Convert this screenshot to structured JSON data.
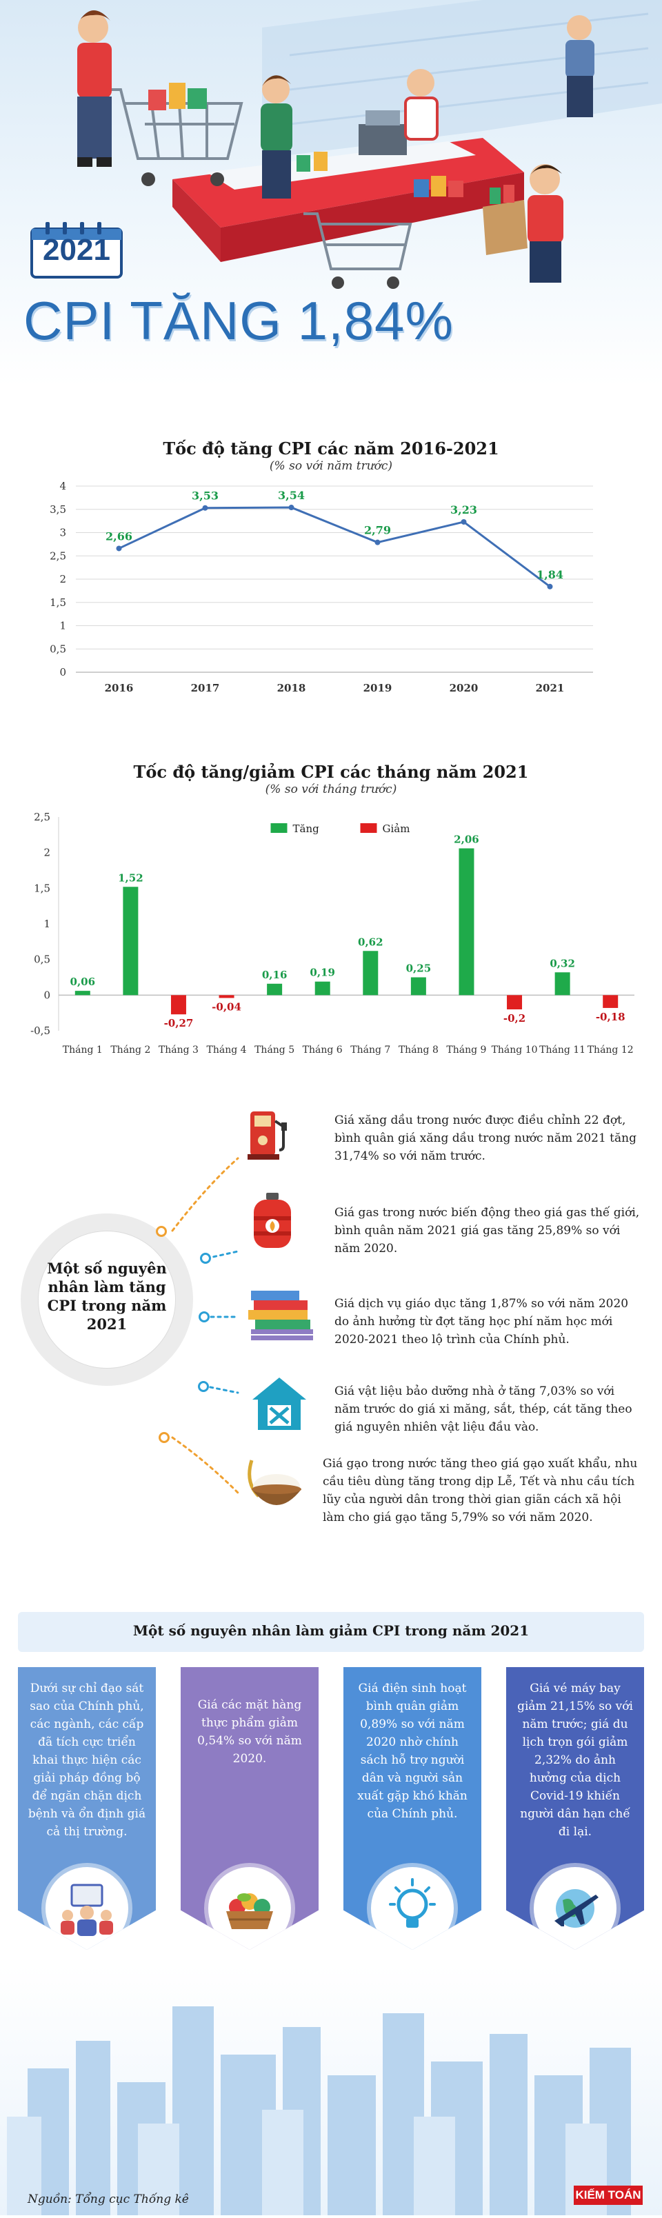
{
  "hero": {
    "year": "2021",
    "headline": "CPI TĂNG 1,84%"
  },
  "chart1": {
    "title": "Tốc độ tăng CPI các năm 2016-2021",
    "subtitle": "(% so với năm trước)"
  },
  "chart2": {
    "title": "Tốc độ tăng/giảm CPI các tháng năm 2021",
    "subtitle": "(% so với tháng trước)",
    "legend_up": "Tăng",
    "legend_down": "Giảm"
  },
  "colors": {
    "line": "#3f6fb5",
    "label_green": "#1a9b4a",
    "bar_green": "#1faa4a",
    "bar_red": "#e02020",
    "col1": "#6b9bd8",
    "col2": "#8e7cc3",
    "col3": "#4f8fd8",
    "col4": "#4a63b8"
  },
  "chart_data": [
    {
      "type": "line",
      "x": [
        "2016",
        "2017",
        "2018",
        "2019",
        "2020",
        "2021"
      ],
      "values": [
        2.66,
        3.53,
        3.54,
        2.79,
        3.23,
        1.84
      ],
      "labels": [
        "2,66",
        "3,53",
        "3,54",
        "2,79",
        "3,23",
        "1,84"
      ],
      "ylim": [
        0,
        4
      ],
      "yticks": [
        "0",
        "0,5",
        "1",
        "1,5",
        "2",
        "2,5",
        "3",
        "3,5",
        "4"
      ],
      "grid": true
    },
    {
      "type": "bar",
      "categories": [
        "Tháng 1",
        "Tháng 2",
        "Tháng 3",
        "Tháng 4",
        "Tháng 5",
        "Tháng 6",
        "Tháng 7",
        "Tháng 8",
        "Tháng 9",
        "Tháng 10",
        "Tháng 11",
        "Tháng 12"
      ],
      "values": [
        0.06,
        1.52,
        -0.27,
        -0.04,
        0.16,
        0.19,
        0.62,
        0.25,
        2.06,
        -0.2,
        0.32,
        -0.18
      ],
      "labels": [
        "0,06",
        "1,52",
        "-0,27",
        "-0,04",
        "0,16",
        "0,19",
        "0,62",
        "0,25",
        "2,06",
        "-0,2",
        "0,32",
        "-0,18"
      ],
      "ylim": [
        -0.5,
        2.5
      ],
      "yticks": [
        "-0,5",
        "0",
        "0,5",
        "1",
        "1,5",
        "2",
        "2,5"
      ],
      "legend": "top-center",
      "grid": false
    }
  ],
  "increase": {
    "circle_text": "Một số nguyên nhân làm tăng CPI trong năm 2021",
    "items": [
      {
        "icon": "fuel-pump-icon",
        "text": "Giá xăng dầu trong nước được điều chỉnh 22 đợt, bình quân giá xăng dầu trong nước năm 2021 tăng 31,74% so với năm trước."
      },
      {
        "icon": "gas-cylinder-icon",
        "text": "Giá gas trong nước biến động theo giá gas thế giới, bình quân năm 2021 giá gas tăng 25,89% so với năm 2020."
      },
      {
        "icon": "books-icon",
        "text": "Giá dịch vụ giáo dục tăng 1,87% so với năm 2020 do ảnh hưởng từ đợt tăng học phí năm học mới 2020-2021 theo lộ trình của Chính phủ."
      },
      {
        "icon": "house-tools-icon",
        "text": "Giá vật liệu bảo dưỡng nhà ở tăng 7,03% so với năm trước do giá xi măng, sắt, thép, cát tăng theo giá nguyên  nhiên vật liệu đầu vào."
      },
      {
        "icon": "rice-bowl-icon",
        "text": "Giá gạo trong nước tăng theo giá gạo xuất khẩu, nhu cầu tiêu dùng tăng trong dịp Lễ, Tết và nhu cầu tích lũy của người dân trong thời gian giãn cách xã hội làm cho giá gạo tăng 5,79% so với năm 2020."
      }
    ]
  },
  "decrease": {
    "title": "Một số nguyên nhân làm giảm CPI trong năm 2021",
    "items": [
      {
        "icon": "government-meeting-icon",
        "text": "Dưới sự chỉ đạo sát sao của Chính phủ, các ngành, các cấp đã tích cực triển khai thực hiện các giải pháp đồng bộ để ngăn chặn dịch bệnh và ổn định giá cả thị trường."
      },
      {
        "icon": "food-basket-icon",
        "text": "Giá các mặt hàng thực phẩm giảm 0,54% so với năm 2020."
      },
      {
        "icon": "light-bulb-icon",
        "text": "Giá điện sinh hoạt bình quân giảm 0,89% so với năm 2020 nhờ chính sách hỗ trợ người dân và người sản xuất gặp khó khăn của Chính phủ."
      },
      {
        "icon": "airplane-globe-icon",
        "text": "Giá vé máy bay giảm 21,15% so với năm trước; giá du lịch trọn gói giảm 2,32% do ảnh hưởng của dịch Covid-19 khiến người dân hạn chế đi lại."
      }
    ]
  },
  "footer": {
    "source": "Nguồn: Tổng cục Thống kê",
    "logo": "KIẾM TOÁN"
  }
}
